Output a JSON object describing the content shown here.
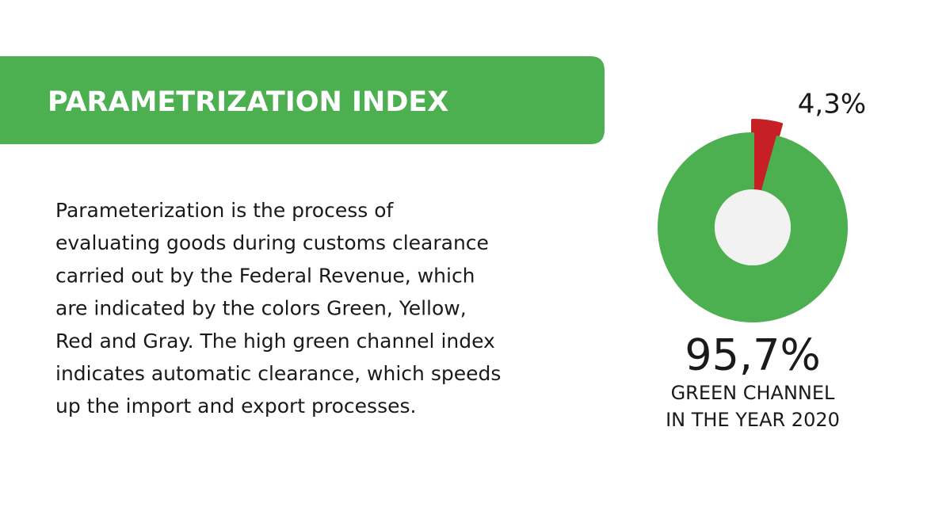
{
  "chart_data": {
    "type": "pie",
    "title": "PARAMETRIZATION INDEX",
    "description": [
      "Parameterization is the process of",
      "evaluating goods during customs clearance",
      "carried out by the Federal Revenue, which",
      "are indicated by the colors Green, Yellow,",
      "Red and Gray. The high green channel index",
      "indicates automatic clearance, which speeds",
      "up the import and export processes."
    ],
    "values": [
      95.7,
      4.3
    ],
    "value_labels": [
      "95,7%",
      "4,3%"
    ],
    "colors": [
      "#4caf50",
      "#c62026"
    ],
    "caption": [
      "GREEN CHANNEL",
      "IN THE YEAR 2020"
    ]
  }
}
